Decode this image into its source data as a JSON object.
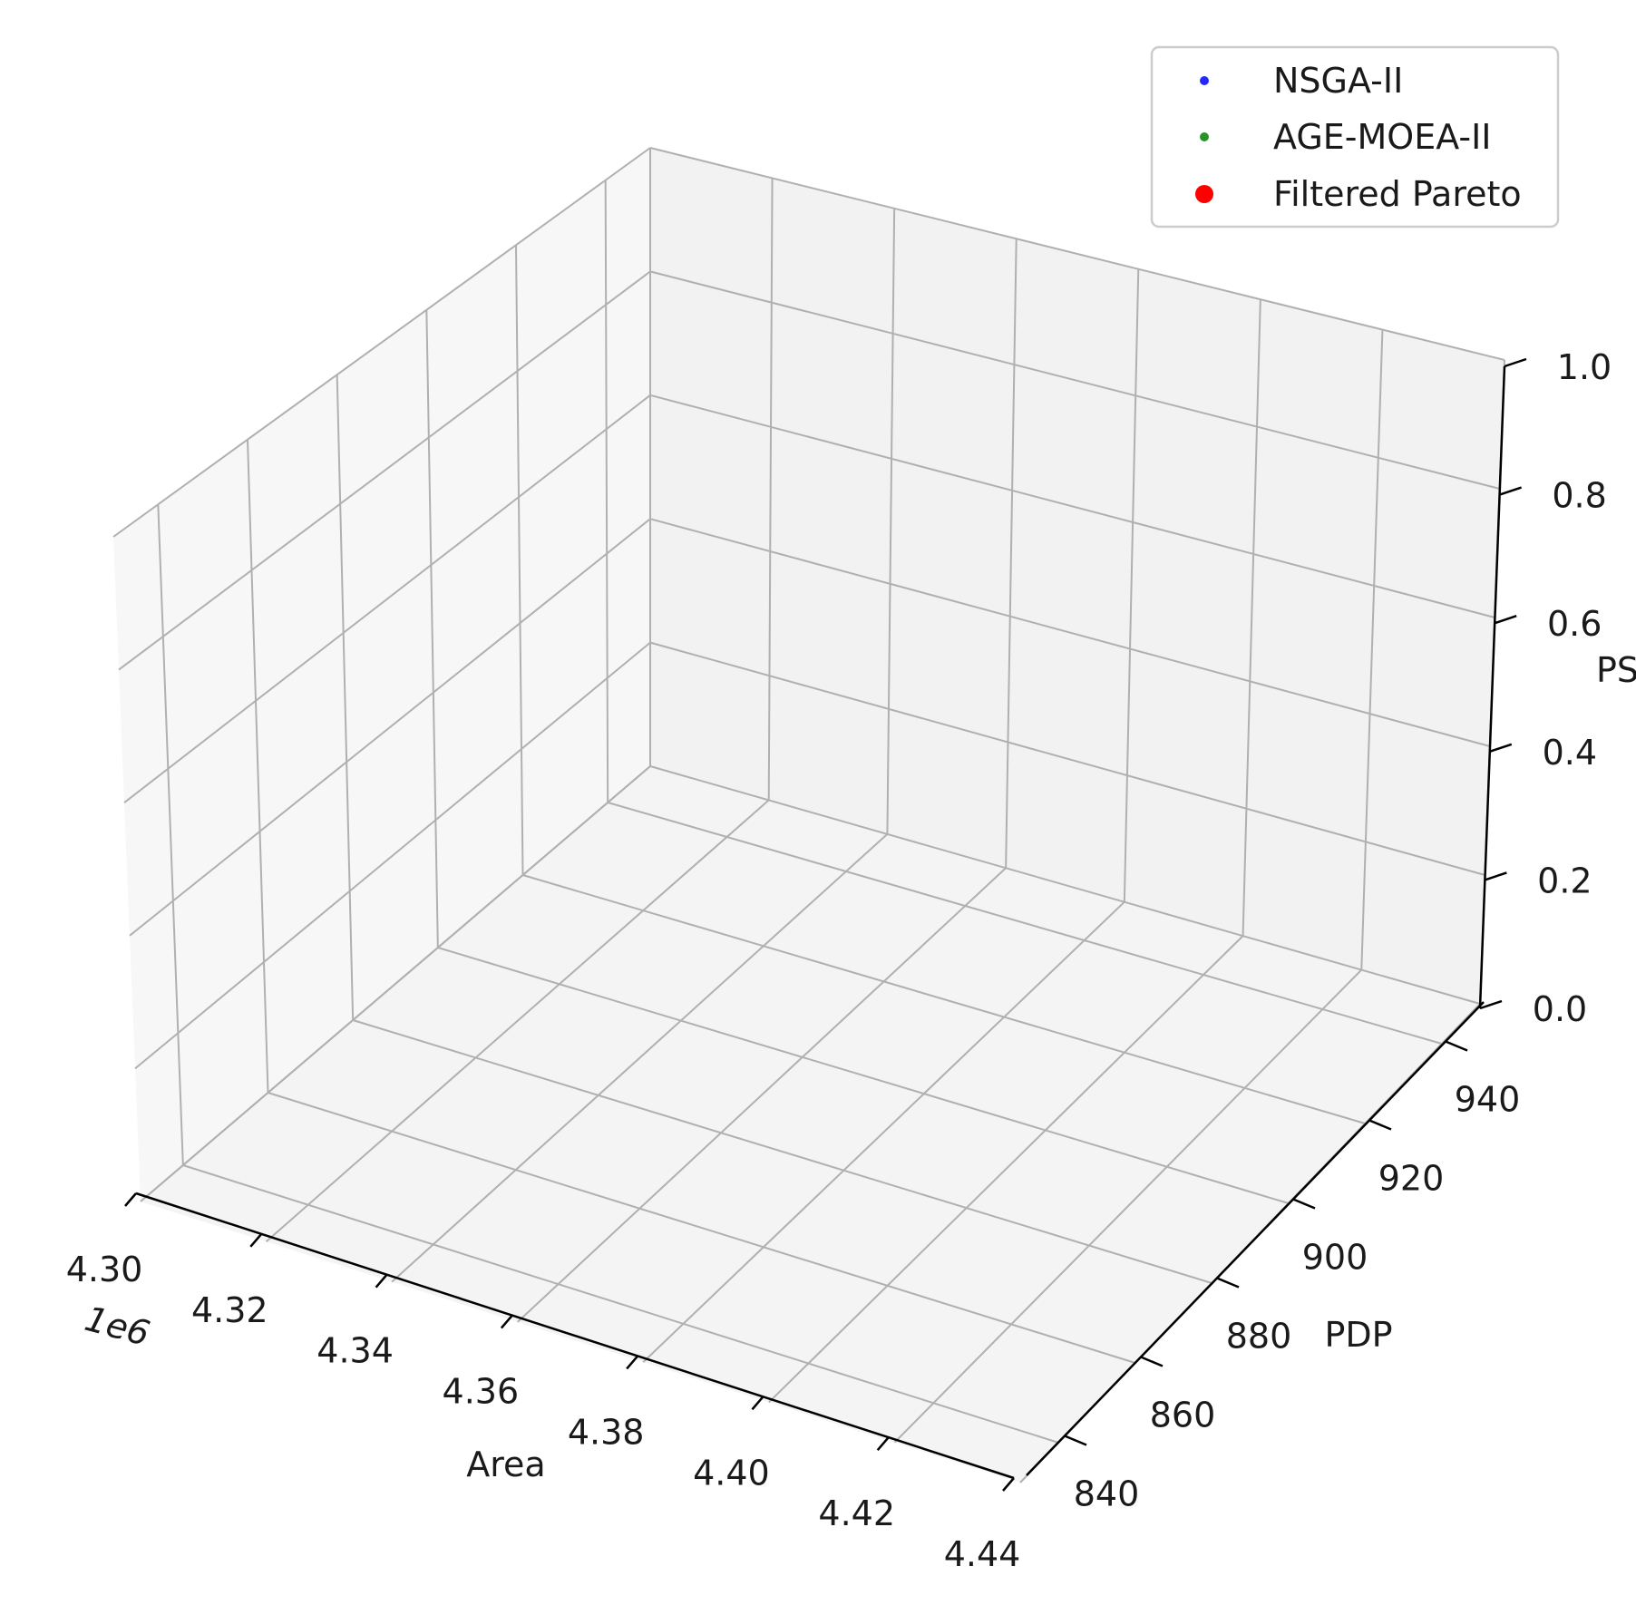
{
  "chart_data": {
    "type": "scatter",
    "projection": "3d",
    "title": "",
    "xlabel": "Area",
    "ylabel": "PDP",
    "zlabel": "PS",
    "x_offset_label": "1e6",
    "xlim": [
      4.3,
      4.44
    ],
    "ylim": [
      830,
      950
    ],
    "zlim": [
      0.0,
      1.0
    ],
    "x_ticks": [
      "4.30",
      "4.32",
      "4.34",
      "4.36",
      "4.38",
      "4.40",
      "4.42",
      "4.44"
    ],
    "y_ticks": [
      "840",
      "860",
      "880",
      "900",
      "920",
      "940"
    ],
    "z_ticks": [
      "0.0",
      "0.2",
      "0.4",
      "0.6",
      "0.8",
      "1.0"
    ],
    "grid": true,
    "legend_position": "top-right",
    "series": [
      {
        "name": "NSGA-II",
        "color": "#0000ff",
        "marker_size": "small",
        "points": []
      },
      {
        "name": "AGE-MOEA-II",
        "color": "#008000",
        "marker_size": "small",
        "points": []
      },
      {
        "name": "Filtered Pareto",
        "color": "#ff0000",
        "marker_size": "large",
        "points": []
      }
    ]
  }
}
